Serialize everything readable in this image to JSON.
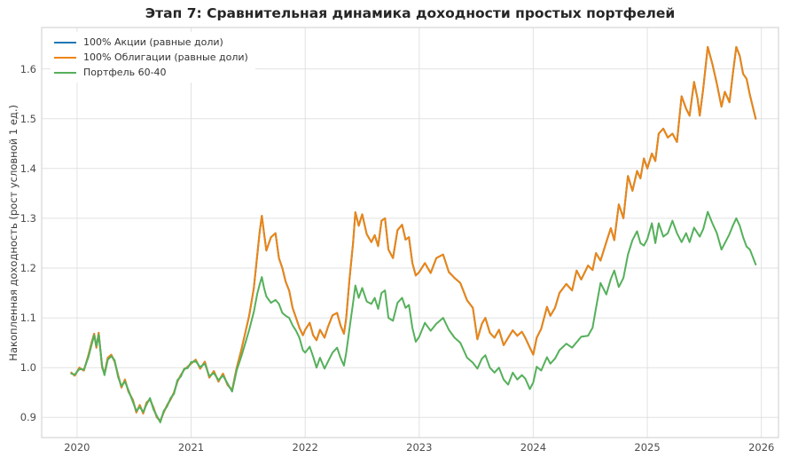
{
  "chart_data": {
    "type": "line",
    "title": "Этап 7: Сравнительная динамика доходности простых портфелей",
    "xlabel": "",
    "ylabel": "Накопленная доходность (рост условной 1 ед.)",
    "xlim": [
      2019.69,
      2026.15
    ],
    "ylim": [
      0.8595,
      1.683
    ],
    "x_ticks": [
      2020,
      2021,
      2022,
      2023,
      2024,
      2025,
      2026
    ],
    "x_tick_labels": [
      "2020",
      "2021",
      "2022",
      "2023",
      "2024",
      "2025",
      "2026"
    ],
    "y_ticks": [
      0.9,
      1.0,
      1.1,
      1.2,
      1.3,
      1.4,
      1.5,
      1.6
    ],
    "y_tick_labels": [
      "0.9",
      "1.0",
      "1.1",
      "1.2",
      "1.3",
      "1.4",
      "1.5",
      "1.6"
    ],
    "grid": true,
    "legend_position": "upper-left",
    "note": "Blue series (100% Акции) is fully overlapped by the orange series (identical values); only orange and green are visible in the plot.",
    "style": {
      "background": "#ffffff",
      "grid_color": "#e2e2e2",
      "border_color": "#d6d6d6",
      "tick_color": "#4d4d4d",
      "title_color": "#262626"
    },
    "x": [
      2019.95,
      2019.98,
      2020.02,
      2020.06,
      2020.1,
      2020.13,
      2020.15,
      2020.17,
      2020.19,
      2020.22,
      2020.24,
      2020.27,
      2020.3,
      2020.33,
      2020.36,
      2020.39,
      2020.42,
      2020.45,
      2020.49,
      2020.52,
      2020.55,
      2020.58,
      2020.61,
      2020.64,
      2020.67,
      2020.7,
      2020.73,
      2020.76,
      2020.79,
      2020.82,
      2020.85,
      2020.88,
      2020.91,
      2020.94,
      2020.97,
      2021.0,
      2021.04,
      2021.08,
      2021.12,
      2021.16,
      2021.2,
      2021.24,
      2021.28,
      2021.32,
      2021.36,
      2021.4,
      2021.44,
      2021.47,
      2021.51,
      2021.55,
      2021.58,
      2021.6,
      2021.62,
      2021.64,
      2021.66,
      2021.7,
      2021.74,
      2021.77,
      2021.8,
      2021.83,
      2021.86,
      2021.89,
      2021.92,
      2021.95,
      2021.98,
      2022.0,
      2022.04,
      2022.07,
      2022.1,
      2022.13,
      2022.17,
      2022.2,
      2022.24,
      2022.28,
      2022.31,
      2022.34,
      2022.36,
      2022.39,
      2022.42,
      2022.44,
      2022.47,
      2022.5,
      2022.54,
      2022.58,
      2022.61,
      2022.64,
      2022.67,
      2022.7,
      2022.73,
      2022.77,
      2022.81,
      2022.85,
      2022.88,
      2022.91,
      2022.94,
      2022.97,
      2023.0,
      2023.05,
      2023.1,
      2023.15,
      2023.21,
      2023.26,
      2023.31,
      2023.36,
      2023.42,
      2023.47,
      2023.51,
      2023.55,
      2023.58,
      2023.62,
      2023.66,
      2023.7,
      2023.74,
      2023.78,
      2023.82,
      2023.86,
      2023.9,
      2023.93,
      2023.97,
      2024.0,
      2024.03,
      2024.07,
      2024.12,
      2024.15,
      2024.19,
      2024.23,
      2024.29,
      2024.34,
      2024.38,
      2024.42,
      2024.48,
      2024.52,
      2024.55,
      2024.59,
      2024.64,
      2024.68,
      2024.71,
      2024.75,
      2024.79,
      2024.83,
      2024.87,
      2024.91,
      2024.94,
      2024.97,
      2025.0,
      2025.04,
      2025.07,
      2025.1,
      2025.14,
      2025.18,
      2025.22,
      2025.26,
      2025.3,
      2025.34,
      2025.37,
      2025.41,
      2025.44,
      2025.46,
      2025.49,
      2025.53,
      2025.57,
      2025.61,
      2025.65,
      2025.68,
      2025.72,
      2025.75,
      2025.78,
      2025.81,
      2025.84,
      2025.87,
      2025.9,
      2025.95
    ],
    "series": [
      {
        "name": "100% Акции (равные доли)",
        "color": "#1f77b4",
        "values": [
          0.99,
          0.984,
          1.0,
          0.994,
          1.025,
          1.052,
          1.068,
          1.04,
          1.07,
          1.0,
          0.988,
          1.02,
          1.026,
          1.012,
          0.985,
          0.96,
          0.976,
          0.952,
          0.935,
          0.91,
          0.925,
          0.908,
          0.93,
          0.936,
          0.92,
          0.9,
          0.893,
          0.91,
          0.925,
          0.936,
          0.95,
          0.972,
          0.985,
          0.996,
          1.002,
          1.008,
          1.016,
          0.998,
          1.012,
          0.98,
          0.993,
          0.972,
          0.988,
          0.965,
          0.955,
          1.0,
          1.035,
          1.065,
          1.105,
          1.16,
          1.225,
          1.27,
          1.305,
          1.27,
          1.235,
          1.262,
          1.27,
          1.22,
          1.2,
          1.172,
          1.155,
          1.12,
          1.1,
          1.08,
          1.065,
          1.076,
          1.09,
          1.065,
          1.055,
          1.076,
          1.06,
          1.082,
          1.105,
          1.11,
          1.085,
          1.068,
          1.1,
          1.18,
          1.25,
          1.312,
          1.285,
          1.308,
          1.268,
          1.252,
          1.266,
          1.244,
          1.295,
          1.3,
          1.237,
          1.22,
          1.276,
          1.287,
          1.257,
          1.262,
          1.21,
          1.185,
          1.192,
          1.21,
          1.19,
          1.22,
          1.227,
          1.192,
          1.18,
          1.17,
          1.135,
          1.12,
          1.057,
          1.088,
          1.1,
          1.07,
          1.06,
          1.076,
          1.045,
          1.06,
          1.075,
          1.064,
          1.072,
          1.06,
          1.04,
          1.026,
          1.06,
          1.078,
          1.122,
          1.104,
          1.12,
          1.15,
          1.168,
          1.155,
          1.195,
          1.177,
          1.205,
          1.196,
          1.23,
          1.215,
          1.252,
          1.28,
          1.256,
          1.328,
          1.3,
          1.385,
          1.355,
          1.395,
          1.38,
          1.42,
          1.4,
          1.43,
          1.415,
          1.47,
          1.48,
          1.462,
          1.47,
          1.453,
          1.545,
          1.52,
          1.506,
          1.574,
          1.54,
          1.506,
          1.56,
          1.644,
          1.61,
          1.57,
          1.524,
          1.554,
          1.533,
          1.59,
          1.644,
          1.626,
          1.59,
          1.58,
          1.547,
          1.5
        ]
      },
      {
        "name": "100% Облигации (равные доли)",
        "color": "#ee8512",
        "values": [
          0.99,
          0.984,
          1.0,
          0.994,
          1.025,
          1.052,
          1.068,
          1.04,
          1.07,
          1.0,
          0.988,
          1.02,
          1.026,
          1.012,
          0.985,
          0.96,
          0.976,
          0.952,
          0.935,
          0.91,
          0.925,
          0.908,
          0.93,
          0.936,
          0.92,
          0.9,
          0.893,
          0.91,
          0.925,
          0.936,
          0.95,
          0.972,
          0.985,
          0.996,
          1.002,
          1.008,
          1.016,
          0.998,
          1.012,
          0.98,
          0.993,
          0.972,
          0.988,
          0.965,
          0.955,
          1.0,
          1.035,
          1.065,
          1.105,
          1.16,
          1.225,
          1.27,
          1.305,
          1.27,
          1.235,
          1.262,
          1.27,
          1.22,
          1.2,
          1.172,
          1.155,
          1.12,
          1.1,
          1.08,
          1.065,
          1.076,
          1.09,
          1.065,
          1.055,
          1.076,
          1.06,
          1.082,
          1.105,
          1.11,
          1.085,
          1.068,
          1.1,
          1.18,
          1.25,
          1.312,
          1.285,
          1.308,
          1.268,
          1.252,
          1.266,
          1.244,
          1.295,
          1.3,
          1.237,
          1.22,
          1.276,
          1.287,
          1.257,
          1.262,
          1.21,
          1.185,
          1.192,
          1.21,
          1.19,
          1.22,
          1.227,
          1.192,
          1.18,
          1.17,
          1.135,
          1.12,
          1.057,
          1.088,
          1.1,
          1.07,
          1.06,
          1.076,
          1.045,
          1.06,
          1.075,
          1.064,
          1.072,
          1.06,
          1.04,
          1.026,
          1.06,
          1.078,
          1.122,
          1.104,
          1.12,
          1.15,
          1.168,
          1.155,
          1.195,
          1.177,
          1.205,
          1.196,
          1.23,
          1.215,
          1.252,
          1.28,
          1.256,
          1.328,
          1.3,
          1.385,
          1.355,
          1.395,
          1.38,
          1.42,
          1.4,
          1.43,
          1.415,
          1.47,
          1.48,
          1.462,
          1.47,
          1.453,
          1.545,
          1.52,
          1.506,
          1.574,
          1.54,
          1.506,
          1.56,
          1.644,
          1.61,
          1.57,
          1.524,
          1.554,
          1.533,
          1.59,
          1.644,
          1.626,
          1.59,
          1.58,
          1.547,
          1.5
        ]
      },
      {
        "name": "Портфель 60-40",
        "color": "#55b05b",
        "values": [
          0.988,
          0.986,
          0.997,
          0.996,
          1.021,
          1.048,
          1.065,
          1.044,
          1.066,
          1.004,
          0.985,
          1.016,
          1.023,
          1.015,
          0.981,
          0.963,
          0.972,
          0.955,
          0.931,
          0.913,
          0.921,
          0.911,
          0.926,
          0.939,
          0.916,
          0.903,
          0.89,
          0.913,
          0.922,
          0.939,
          0.947,
          0.975,
          0.982,
          0.998,
          0.999,
          1.011,
          1.013,
          1.001,
          1.008,
          0.983,
          0.989,
          0.975,
          0.984,
          0.968,
          0.952,
          0.995,
          1.022,
          1.045,
          1.076,
          1.112,
          1.148,
          1.166,
          1.182,
          1.16,
          1.143,
          1.13,
          1.136,
          1.128,
          1.11,
          1.104,
          1.1,
          1.085,
          1.074,
          1.06,
          1.035,
          1.03,
          1.042,
          1.022,
          1.0,
          1.02,
          0.998,
          1.012,
          1.03,
          1.04,
          1.02,
          1.004,
          1.03,
          1.08,
          1.13,
          1.165,
          1.14,
          1.16,
          1.133,
          1.128,
          1.14,
          1.118,
          1.15,
          1.155,
          1.1,
          1.094,
          1.13,
          1.14,
          1.12,
          1.126,
          1.08,
          1.052,
          1.062,
          1.09,
          1.074,
          1.088,
          1.1,
          1.076,
          1.06,
          1.05,
          1.02,
          1.01,
          0.998,
          1.018,
          1.025,
          1.0,
          0.99,
          1.0,
          0.976,
          0.966,
          0.99,
          0.976,
          0.985,
          0.978,
          0.957,
          0.97,
          1.002,
          0.994,
          1.021,
          1.008,
          1.018,
          1.035,
          1.048,
          1.04,
          1.051,
          1.062,
          1.064,
          1.08,
          1.12,
          1.17,
          1.147,
          1.178,
          1.195,
          1.162,
          1.18,
          1.227,
          1.256,
          1.274,
          1.25,
          1.245,
          1.258,
          1.29,
          1.25,
          1.29,
          1.263,
          1.27,
          1.295,
          1.27,
          1.252,
          1.27,
          1.252,
          1.281,
          1.27,
          1.263,
          1.278,
          1.313,
          1.29,
          1.27,
          1.237,
          1.25,
          1.268,
          1.285,
          1.3,
          1.285,
          1.262,
          1.243,
          1.237,
          1.207
        ]
      }
    ]
  }
}
